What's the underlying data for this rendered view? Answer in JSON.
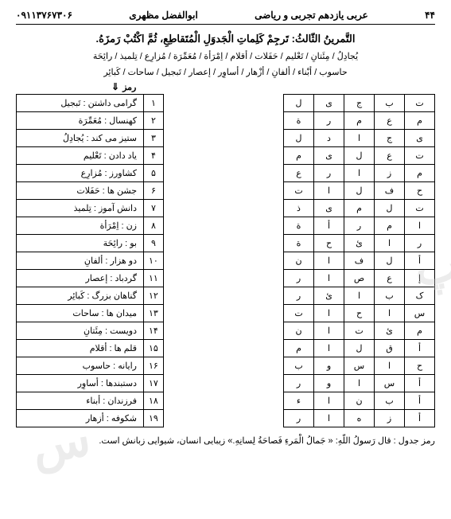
{
  "header": {
    "page_num": "۴۴",
    "subject": "عربی یازدهم تجربی و ریاضی",
    "author": "ابوالفضل مظهری",
    "phone": "۰۹۱۱۳۷۶۷۳۰۶"
  },
  "exercise": {
    "title": "التَّمرینُ الثّالثُ: تَرجِمْ کَلِماتِ الْجَدوَلِ الْمُتَقاطِعِ، ثُمَّ اکْتُبْ رَمزَهُ.",
    "bank_line1": "یُجادِلُ / مِئَتانِ / تَعْلیم / حَفَلات / أقلام / اِمْرَأة / مُعَمِّرَة / مُزارِع / تِلمیذ / رائِحَة",
    "bank_line2": "حاسوب / أبْناء / ألفانِ / أزْهار / أساوِر / إعصار / تَبجیل / ساحات / کَبائِر",
    "ramz_label": "رمز"
  },
  "right_table": [
    {
      "num": "۱",
      "text": "گرامی داشتن : تَبجیل"
    },
    {
      "num": "۲",
      "text": "کهنسال : مُعَمِّرَة"
    },
    {
      "num": "۳",
      "text": "ستیز می کند : یُجادِلُ"
    },
    {
      "num": "۴",
      "text": "یاد دادن : تَعْلیم"
    },
    {
      "num": "۵",
      "text": "کشاورز : مُزارِع"
    },
    {
      "num": "۶",
      "text": "جشن ها : حَفَلات"
    },
    {
      "num": "۷",
      "text": "دانش آموز : تِلمیذ"
    },
    {
      "num": "۸",
      "text": "زن : اِمْرَأة"
    },
    {
      "num": "۹",
      "text": "بو : رائِحَة"
    },
    {
      "num": "۱۰",
      "text": "دو هزار : ألفانِ"
    },
    {
      "num": "۱۱",
      "text": "گردباد : إعصار"
    },
    {
      "num": "۱۲",
      "text": "گناهان بزرگ : کَبائِر"
    },
    {
      "num": "۱۳",
      "text": "میدان ها : ساحات"
    },
    {
      "num": "۱۴",
      "text": "دویست : مِئَتانِ"
    },
    {
      "num": "۱۵",
      "text": "قلم ها : أقلام"
    },
    {
      "num": "۱۶",
      "text": "رایانه : حاسوب"
    },
    {
      "num": "۱۷",
      "text": "دستبندها : أساوِر"
    },
    {
      "num": "۱۸",
      "text": "فرزندان : أبناء"
    },
    {
      "num": "۱۹",
      "text": "شکوفه : أزهار"
    }
  ],
  "left_table": [
    [
      "ت",
      "ب",
      "ج",
      "ی",
      "ل"
    ],
    [
      "م",
      "ع",
      "م",
      "ر",
      "ة"
    ],
    [
      "ی",
      "ج",
      "ا",
      "د",
      "ل"
    ],
    [
      "ت",
      "ع",
      "ل",
      "ی",
      "م"
    ],
    [
      "م",
      "ز",
      "ا",
      "ر",
      "ع"
    ],
    [
      "ح",
      "ف",
      "ل",
      "ا",
      "ت"
    ],
    [
      "ت",
      "ل",
      "م",
      "ی",
      "ذ"
    ],
    [
      "ا",
      "م",
      "ر",
      "أ",
      "ة"
    ],
    [
      "ر",
      "ا",
      "ئ",
      "ح",
      "ة"
    ],
    [
      "أ",
      "ل",
      "ف",
      "ا",
      "ن"
    ],
    [
      "إ",
      "ع",
      "ص",
      "ا",
      "ر"
    ],
    [
      "ک",
      "ب",
      "ا",
      "ئ",
      "ر"
    ],
    [
      "س",
      "ا",
      "ح",
      "ا",
      "ت"
    ],
    [
      "م",
      "ئ",
      "ت",
      "ا",
      "ن"
    ],
    [
      "أ",
      "ق",
      "ل",
      "ا",
      "م"
    ],
    [
      "ح",
      "ا",
      "س",
      "و",
      "ب"
    ],
    [
      "أ",
      "س",
      "ا",
      "و",
      "ر"
    ],
    [
      "أ",
      "ب",
      "ن",
      "ا",
      "ء"
    ],
    [
      "أ",
      "ز",
      "ه",
      "ا",
      "ر"
    ]
  ],
  "footer": {
    "text": "رمز جدول : قال رَسولُ اللّهِ: « جَمالُ الْمَرءِ فَصاحَةُ لِسانِهِ.» زیبایی انسان، شیوایی زبانش است."
  }
}
